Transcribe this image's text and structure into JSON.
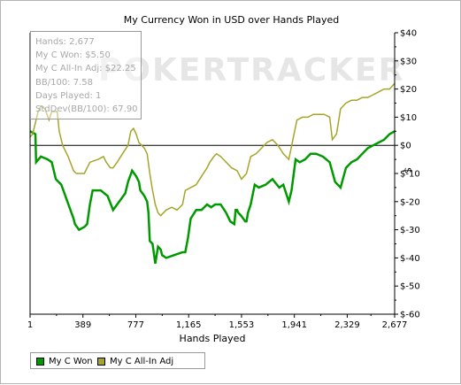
{
  "chart_data": {
    "type": "line",
    "title": "My Currency Won in USD over Hands Played",
    "xlabel": "Hands Played",
    "ylabel": "$",
    "xlim": [
      1,
      2677
    ],
    "ylim": [
      -60,
      40
    ],
    "x_ticks": [
      1,
      389,
      777,
      1165,
      1553,
      1941,
      2329,
      2677
    ],
    "x_tick_labels": [
      "1",
      "389",
      "777",
      "1,165",
      "1,553",
      "1,941",
      "2,329",
      "2,677"
    ],
    "y_ticks": [
      40,
      30,
      20,
      10,
      0,
      -10,
      -20,
      -30,
      -40,
      -50,
      -60
    ],
    "y_tick_labels": [
      "$40",
      "$30",
      "$20",
      "$10",
      "$0",
      "$-10",
      "$-20",
      "$-30",
      "$-40",
      "$-50",
      "$-60"
    ],
    "zero_line": true,
    "legend": "bottom-left",
    "watermark": "POKERTRACKER",
    "stats": [
      "Hands: 2,677",
      "My C Won: $5.50",
      "My C All-In Adj: $22.25",
      "BB/100: 7.58",
      "Days Played: 1",
      "StdDev(BB/100): 67.90"
    ],
    "series": [
      {
        "name": "My C Won",
        "color": "#009a00",
        "points": [
          [
            1,
            5
          ],
          [
            40,
            4
          ],
          [
            45,
            -6
          ],
          [
            80,
            -4
          ],
          [
            130,
            -5
          ],
          [
            160,
            -6
          ],
          [
            190,
            -12
          ],
          [
            230,
            -14
          ],
          [
            260,
            -18
          ],
          [
            290,
            -22
          ],
          [
            320,
            -26
          ],
          [
            330,
            -28
          ],
          [
            360,
            -30
          ],
          [
            400,
            -29
          ],
          [
            420,
            -28
          ],
          [
            440,
            -21
          ],
          [
            460,
            -16
          ],
          [
            520,
            -16
          ],
          [
            570,
            -18
          ],
          [
            610,
            -23
          ],
          [
            640,
            -21
          ],
          [
            700,
            -17
          ],
          [
            720,
            -13
          ],
          [
            750,
            -9
          ],
          [
            780,
            -11
          ],
          [
            800,
            -13
          ],
          [
            810,
            -16
          ],
          [
            840,
            -18
          ],
          [
            860,
            -20
          ],
          [
            870,
            -24
          ],
          [
            880,
            -34
          ],
          [
            900,
            -35
          ],
          [
            920,
            -42
          ],
          [
            940,
            -36
          ],
          [
            960,
            -37
          ],
          [
            970,
            -39
          ],
          [
            1000,
            -40
          ],
          [
            1060,
            -39
          ],
          [
            1120,
            -38
          ],
          [
            1140,
            -38
          ],
          [
            1160,
            -33
          ],
          [
            1180,
            -26
          ],
          [
            1220,
            -23
          ],
          [
            1260,
            -23
          ],
          [
            1300,
            -21
          ],
          [
            1330,
            -22
          ],
          [
            1360,
            -21
          ],
          [
            1400,
            -21
          ],
          [
            1440,
            -24
          ],
          [
            1470,
            -27
          ],
          [
            1500,
            -28
          ],
          [
            1510,
            -23
          ],
          [
            1520,
            -23
          ],
          [
            1530,
            -24
          ],
          [
            1550,
            -25
          ],
          [
            1580,
            -27
          ],
          [
            1590,
            -27
          ],
          [
            1600,
            -24
          ],
          [
            1620,
            -21
          ],
          [
            1650,
            -14
          ],
          [
            1680,
            -15
          ],
          [
            1730,
            -14
          ],
          [
            1780,
            -12
          ],
          [
            1830,
            -15
          ],
          [
            1860,
            -14
          ],
          [
            1900,
            -20
          ],
          [
            1920,
            -16
          ],
          [
            1950,
            -5
          ],
          [
            1980,
            -6
          ],
          [
            2020,
            -5
          ],
          [
            2060,
            -3
          ],
          [
            2100,
            -3
          ],
          [
            2150,
            -4
          ],
          [
            2200,
            -6
          ],
          [
            2240,
            -13
          ],
          [
            2280,
            -15
          ],
          [
            2320,
            -8
          ],
          [
            2360,
            -6
          ],
          [
            2400,
            -5
          ],
          [
            2440,
            -3
          ],
          [
            2480,
            -1
          ],
          [
            2520,
            0
          ],
          [
            2560,
            1
          ],
          [
            2600,
            2
          ],
          [
            2640,
            4
          ],
          [
            2677,
            5
          ]
        ]
      },
      {
        "name": "My C All-In Adj",
        "color": "#a5a52a",
        "points": [
          [
            1,
            3
          ],
          [
            20,
            4
          ],
          [
            40,
            8
          ],
          [
            60,
            12
          ],
          [
            80,
            14
          ],
          [
            110,
            13
          ],
          [
            140,
            9
          ],
          [
            160,
            12
          ],
          [
            200,
            12
          ],
          [
            215,
            5
          ],
          [
            240,
            0
          ],
          [
            280,
            -4
          ],
          [
            320,
            -9
          ],
          [
            340,
            -10
          ],
          [
            400,
            -10
          ],
          [
            420,
            -8
          ],
          [
            440,
            -6
          ],
          [
            500,
            -5
          ],
          [
            540,
            -4
          ],
          [
            560,
            -6
          ],
          [
            590,
            -8
          ],
          [
            610,
            -8
          ],
          [
            640,
            -6
          ],
          [
            680,
            -3
          ],
          [
            720,
            0
          ],
          [
            740,
            5
          ],
          [
            760,
            6
          ],
          [
            780,
            4
          ],
          [
            800,
            1
          ],
          [
            820,
            0
          ],
          [
            840,
            -1
          ],
          [
            860,
            -3
          ],
          [
            880,
            -10
          ],
          [
            900,
            -16
          ],
          [
            920,
            -21
          ],
          [
            940,
            -24
          ],
          [
            960,
            -25
          ],
          [
            1000,
            -23
          ],
          [
            1040,
            -22
          ],
          [
            1080,
            -23
          ],
          [
            1120,
            -21
          ],
          [
            1140,
            -16
          ],
          [
            1180,
            -15
          ],
          [
            1220,
            -14
          ],
          [
            1260,
            -11
          ],
          [
            1300,
            -8
          ],
          [
            1320,
            -6
          ],
          [
            1350,
            -4
          ],
          [
            1370,
            -3
          ],
          [
            1400,
            -4
          ],
          [
            1440,
            -6
          ],
          [
            1480,
            -8
          ],
          [
            1520,
            -9
          ],
          [
            1553,
            -12
          ],
          [
            1590,
            -10
          ],
          [
            1620,
            -4
          ],
          [
            1660,
            -3
          ],
          [
            1700,
            -1
          ],
          [
            1740,
            1
          ],
          [
            1780,
            2
          ],
          [
            1820,
            0
          ],
          [
            1860,
            -3
          ],
          [
            1900,
            -5
          ],
          [
            1930,
            2
          ],
          [
            1960,
            9
          ],
          [
            2000,
            10
          ],
          [
            2040,
            10
          ],
          [
            2080,
            11
          ],
          [
            2120,
            11
          ],
          [
            2160,
            11
          ],
          [
            2200,
            10
          ],
          [
            2220,
            2
          ],
          [
            2250,
            4
          ],
          [
            2280,
            13
          ],
          [
            2320,
            15
          ],
          [
            2360,
            16
          ],
          [
            2400,
            16
          ],
          [
            2440,
            17
          ],
          [
            2480,
            17
          ],
          [
            2520,
            18
          ],
          [
            2560,
            19
          ],
          [
            2600,
            20
          ],
          [
            2640,
            20
          ],
          [
            2677,
            22
          ]
        ]
      }
    ]
  }
}
